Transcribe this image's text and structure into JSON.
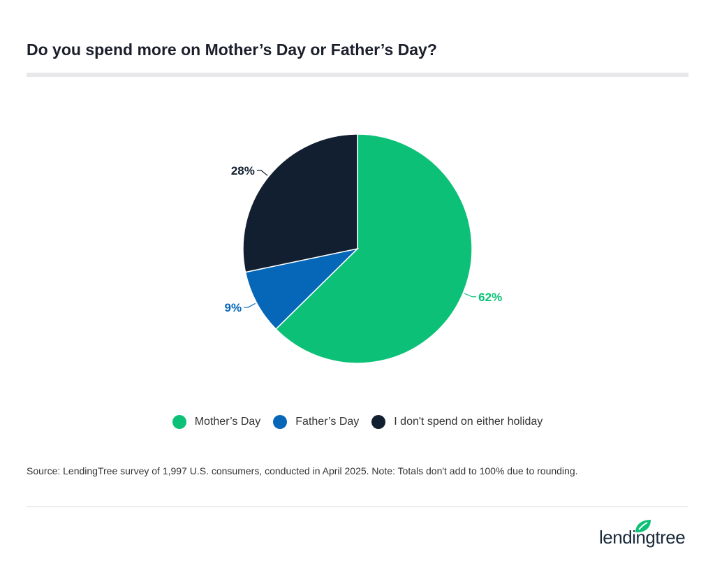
{
  "title": "Do you spend more on Mother’s Day or Father’s Day?",
  "chart_data": {
    "type": "pie",
    "title": "Do you spend more on Mother’s Day or Father’s Day?",
    "categories": [
      "Mother’s Day",
      "Father’s Day",
      "I don't spend on either holiday"
    ],
    "values": [
      62,
      9,
      28
    ],
    "labels": [
      "62%",
      "9%",
      "28%"
    ],
    "colors": [
      "#0cc177",
      "#0667b8",
      "#121f30"
    ],
    "legend_position": "bottom",
    "start_angle": "top, clockwise"
  },
  "legend": [
    {
      "label": "Mother’s Day",
      "color": "#0cc177"
    },
    {
      "label": "Father’s Day",
      "color": "#0667b8"
    },
    {
      "label": "I don't spend on either holiday",
      "color": "#121f30"
    }
  ],
  "source": "Source: LendingTree survey of 1,997 U.S. consumers, conducted in April 2025. Note: Totals don't add to 100% due to rounding.",
  "logo": {
    "text": "lendingtree",
    "color": "#0cc177"
  }
}
